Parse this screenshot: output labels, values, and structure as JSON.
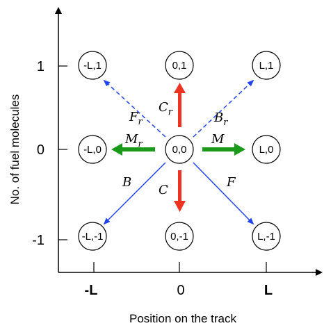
{
  "axes": {
    "x_label": "Position on the track",
    "y_label": "No. of fuel molecules",
    "x_ticks": [
      "-L",
      "0",
      "L"
    ],
    "y_ticks": [
      "1",
      "0",
      "-1"
    ]
  },
  "nodes": [
    {
      "id": "n-m1-p1",
      "label": "-L,1"
    },
    {
      "id": "n-0-p1",
      "label": "0,1"
    },
    {
      "id": "n-p1-p1",
      "label": "L,1"
    },
    {
      "id": "n-m1-0",
      "label": "-L,0"
    },
    {
      "id": "n-0-0",
      "label": "0,0"
    },
    {
      "id": "n-p1-0",
      "label": "L,0"
    },
    {
      "id": "n-m1-m1",
      "label": "-L,-1"
    },
    {
      "id": "n-0-m1",
      "label": "0,-1"
    },
    {
      "id": "n-p1-m1",
      "label": "L,-1"
    }
  ],
  "transitions": {
    "Fr": {
      "main": "F",
      "sub": "r"
    },
    "Cr": {
      "main": "C",
      "sub": "r"
    },
    "Br": {
      "main": "B",
      "sub": "r"
    },
    "Mr": {
      "main": "M",
      "sub": "r"
    },
    "M": {
      "main": "M"
    },
    "B": {
      "main": "B"
    },
    "C": {
      "main": "C"
    },
    "F": {
      "main": "F"
    }
  },
  "colors": {
    "red": "#ee3322",
    "green": "#1a9a1a",
    "blue": "#2244ee",
    "axis": "#000000"
  }
}
